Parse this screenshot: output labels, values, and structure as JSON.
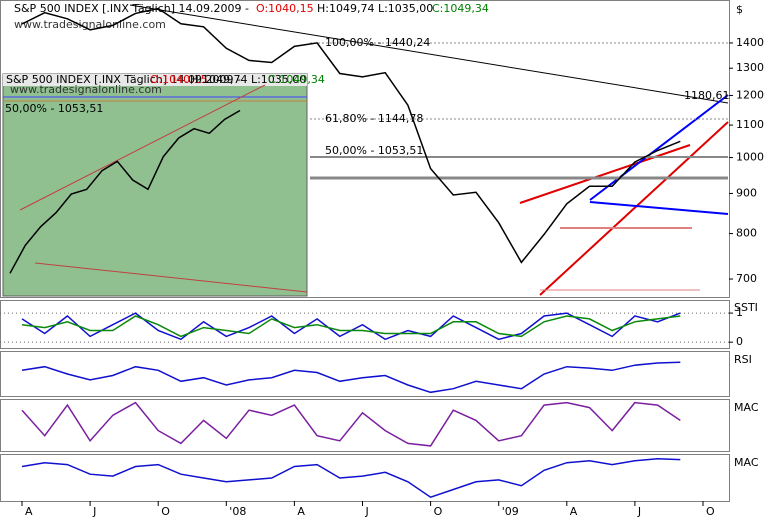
{
  "header": {
    "instrument": "S&P 500 INDEX [.INX  Täglich] 14.09.2009 -",
    "open": "O:1040,15",
    "high_low": "H:1049,74 L:1035,00",
    "close": "C:1049,34"
  },
  "watermark": "www.tradesignalonline.com",
  "axis_unit": "$",
  "chart_data": [
    {
      "type": "line",
      "log_scale": true,
      "categories": [
        "A",
        null,
        null,
        "J",
        null,
        null,
        "O",
        null,
        null,
        "'08",
        null,
        null,
        "A",
        null,
        null,
        "J",
        null,
        null,
        "O",
        null,
        null,
        "'09",
        null,
        null,
        "A",
        null,
        null,
        "J",
        null,
        null,
        "O"
      ],
      "series": [
        {
          "name": "S&P 500 INDEX",
          "color": "#000000",
          "values": [
            1480,
            1530,
            1503,
            1455,
            1474,
            1527,
            1549,
            1481,
            1468,
            1378,
            1330,
            1322,
            1386,
            1400,
            1280,
            1267,
            1283,
            1166,
            968,
            896,
            903,
            826,
            735,
            798,
            873,
            919,
            919,
            987,
            1021,
            1049,
            null
          ]
        }
      ],
      "ylim": [
        666,
        1565
      ],
      "yticks": [
        700,
        800,
        900,
        1000,
        1100,
        1200,
        1300,
        1400
      ],
      "annotations": [
        "100,00% - 1440,24",
        "61,80% - 1144,78",
        "50,00% - 1053,51",
        "1180,61"
      ]
    },
    {
      "type": "line",
      "label": "SSTI",
      "ylim": [
        -0.2,
        1.45
      ],
      "yticks": [
        0,
        1
      ],
      "series": [
        {
          "name": "SSTI",
          "color": "#1010d0",
          "values": [
            0.8,
            0.3,
            0.9,
            0.2,
            0.6,
            1.0,
            0.4,
            0.1,
            0.7,
            0.2,
            0.5,
            0.9,
            0.3,
            0.8,
            0.2,
            0.6,
            0.1,
            0.4,
            0.2,
            0.9,
            0.5,
            0.1,
            0.3,
            0.9,
            1.0,
            0.6,
            0.2,
            0.9,
            0.7,
            1.0,
            null
          ]
        },
        {
          "name": "SSTI signal",
          "color": "#0a8a0a",
          "values": [
            0.6,
            0.5,
            0.7,
            0.4,
            0.4,
            0.9,
            0.6,
            0.2,
            0.5,
            0.4,
            0.3,
            0.8,
            0.5,
            0.6,
            0.4,
            0.4,
            0.3,
            0.3,
            0.3,
            0.7,
            0.7,
            0.3,
            0.2,
            0.7,
            0.9,
            0.8,
            0.4,
            0.7,
            0.8,
            0.9,
            null
          ]
        }
      ]
    },
    {
      "type": "line",
      "label": "RSI",
      "ylim": [
        20,
        80
      ],
      "series": [
        {
          "name": "RSI",
          "color": "#1010d0",
          "values": [
            55,
            60,
            50,
            42,
            48,
            60,
            55,
            40,
            45,
            35,
            42,
            45,
            55,
            52,
            40,
            45,
            48,
            35,
            25,
            30,
            40,
            35,
            30,
            50,
            60,
            58,
            55,
            62,
            65,
            66,
            null
          ]
        }
      ]
    },
    {
      "type": "line",
      "label": "MAC",
      "ylim": [
        0,
        100
      ],
      "series": [
        {
          "name": "MAC",
          "color": "#7a1fa0",
          "values": [
            80,
            30,
            90,
            20,
            70,
            95,
            40,
            15,
            60,
            25,
            80,
            70,
            90,
            30,
            20,
            75,
            40,
            15,
            10,
            80,
            60,
            20,
            30,
            90,
            95,
            85,
            40,
            95,
            90,
            60,
            null
          ]
        }
      ]
    },
    {
      "type": "line",
      "label": "MAC",
      "ylim": [
        -80,
        40
      ],
      "series": [
        {
          "name": "MAC",
          "color": "#1010d0",
          "values": [
            10,
            20,
            15,
            -10,
            -15,
            10,
            15,
            -10,
            -20,
            -30,
            -25,
            -20,
            10,
            15,
            -20,
            -15,
            -5,
            -30,
            -70,
            -50,
            -30,
            -25,
            -40,
            0,
            20,
            25,
            15,
            25,
            30,
            28,
            null
          ]
        }
      ]
    },
    {
      "type": "line",
      "inset": true,
      "ylim": [
        660,
        1080
      ],
      "series": [
        {
          "name": "S&P 500 INDEX",
          "color": "#000000",
          "values": [
            700,
            760,
            800,
            830,
            870,
            880,
            920,
            940,
            900,
            880,
            950,
            990,
            1010,
            1000,
            1030,
            1049
          ]
        }
      ]
    }
  ]
}
